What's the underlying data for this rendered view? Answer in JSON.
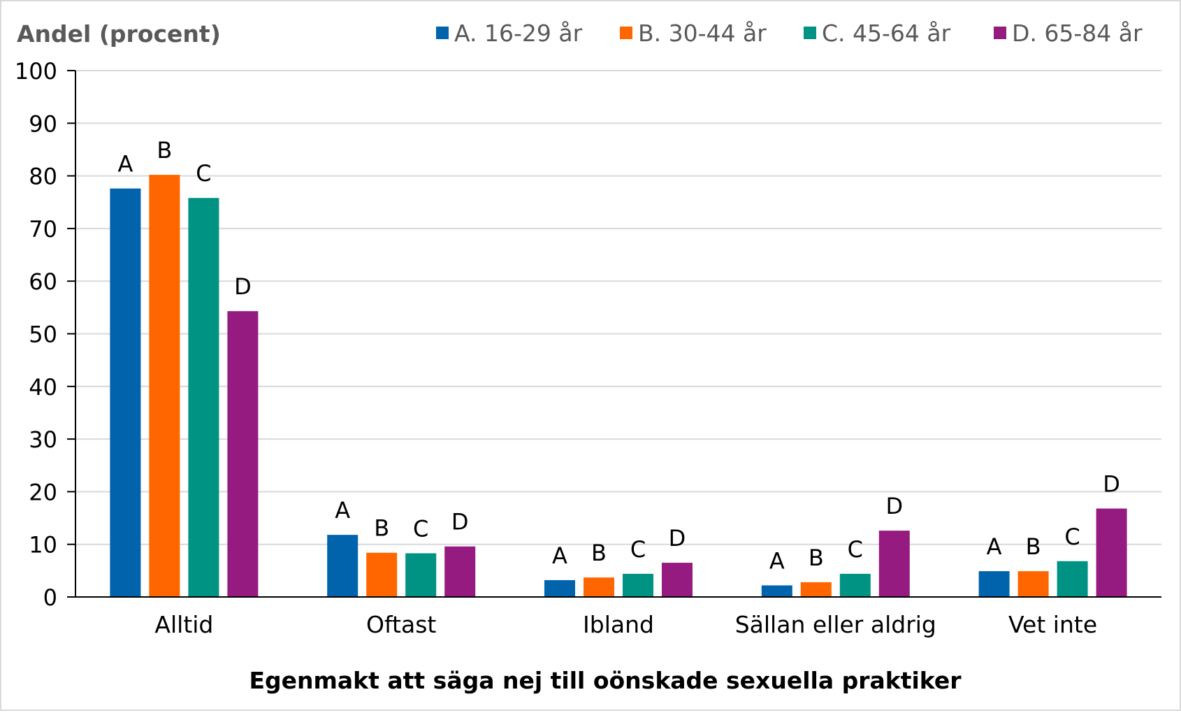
{
  "chart_data": {
    "type": "bar",
    "ylabel": "Andel (procent)",
    "xlabel": "Egenmakt att säga nej till oönskade sexuella praktiker",
    "ylim": [
      0,
      100
    ],
    "yticks": [
      0,
      10,
      20,
      30,
      40,
      50,
      60,
      70,
      80,
      90,
      100
    ],
    "grid": true,
    "legend_position": "top-right",
    "categories": [
      "Alltid",
      "Oftast",
      "Ibland",
      "Sällan eller aldrig",
      "Vet inte"
    ],
    "series": [
      {
        "name": "A. 16-29 år",
        "marker": "A",
        "color": "#0063AC",
        "values": [
          77.6,
          11.8,
          3.2,
          2.2,
          4.9
        ]
      },
      {
        "name": "B. 30-44 år",
        "marker": "B",
        "color": "#FF6600",
        "values": [
          80.2,
          8.4,
          3.7,
          2.8,
          4.9
        ]
      },
      {
        "name": "C. 45-64 år",
        "marker": "C",
        "color": "#009282",
        "values": [
          75.8,
          8.3,
          4.4,
          4.4,
          6.8
        ]
      },
      {
        "name": "D. 65-84 år",
        "marker": "D",
        "color": "#951B81",
        "values": [
          54.3,
          9.6,
          6.5,
          12.6,
          16.8
        ]
      }
    ]
  }
}
